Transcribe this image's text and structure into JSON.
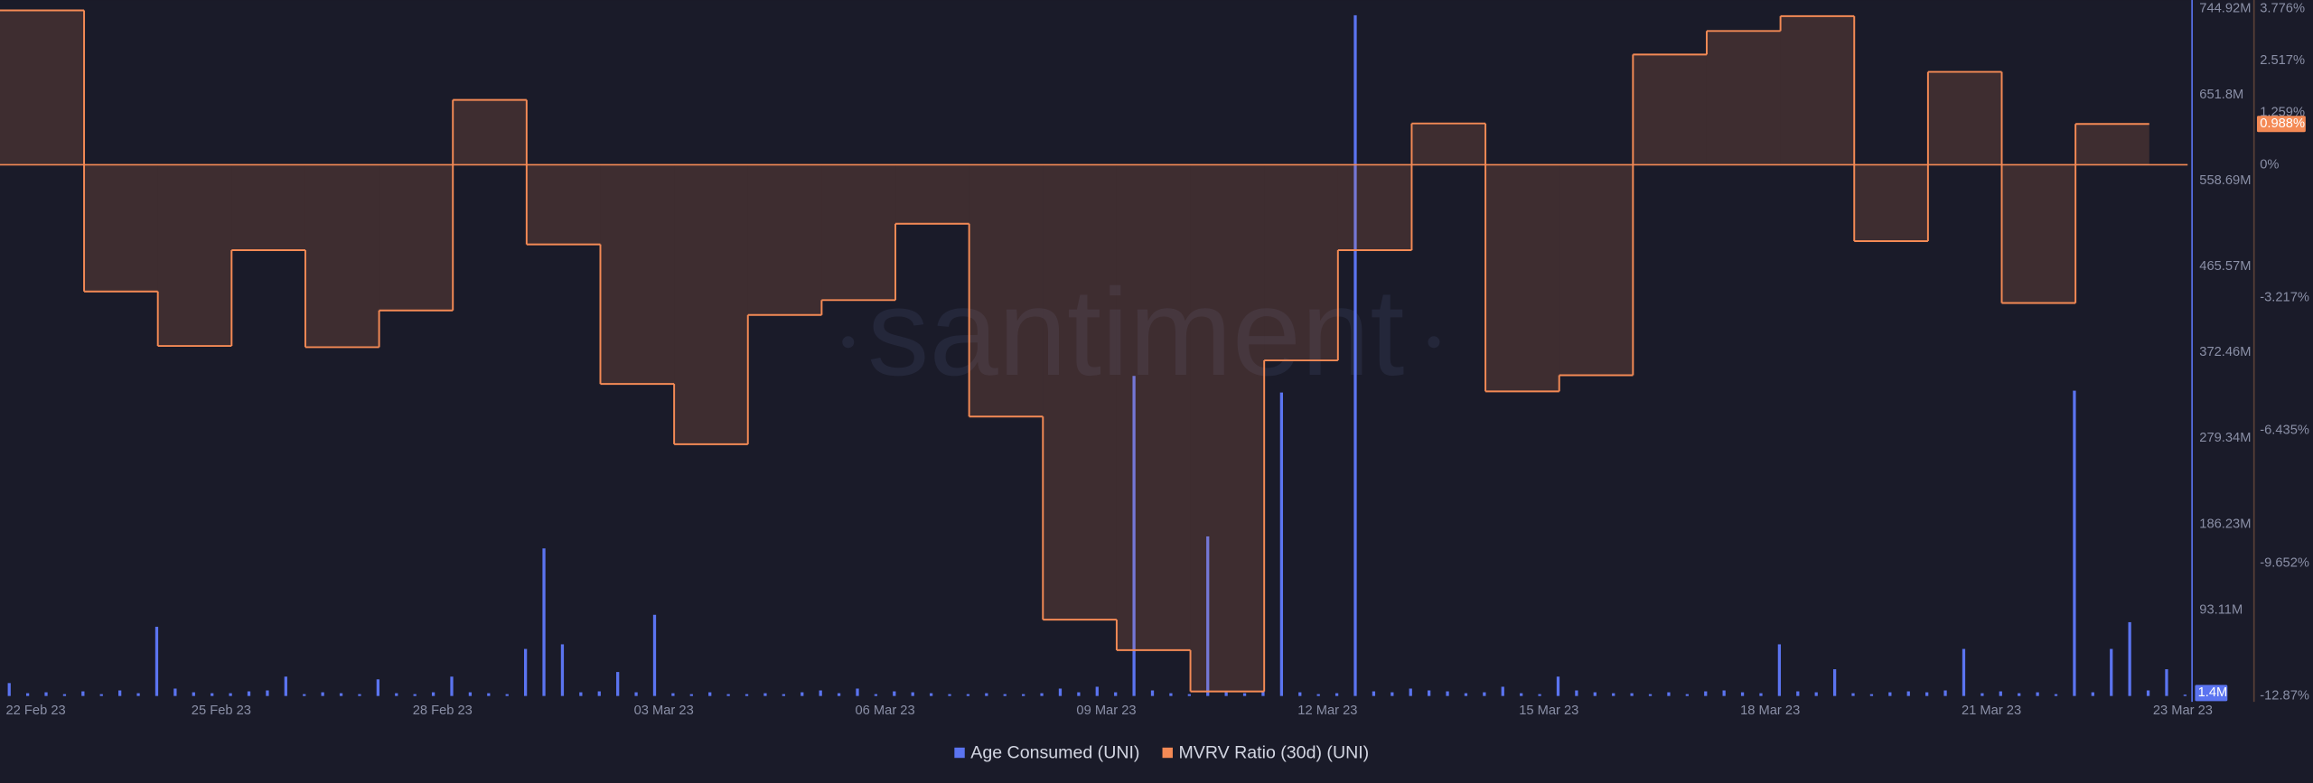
{
  "chart_data": {
    "type": "combo",
    "watermark": "santiment",
    "categories": [
      "22 Feb 23",
      null,
      null,
      "25 Feb 23",
      null,
      null,
      "28 Feb 23",
      null,
      null,
      "03 Mar 23",
      null,
      null,
      "06 Mar 23",
      null,
      null,
      "09 Mar 23",
      null,
      null,
      "12 Mar 23",
      null,
      null,
      "15 Mar 23",
      null,
      null,
      "18 Mar 23",
      null,
      null,
      "21 Mar 23",
      null,
      "23 Mar 23"
    ],
    "ylim": [
      0,
      744.92
    ],
    "yticks": [
      {
        "value": 744.92,
        "label": "744.92M"
      },
      {
        "value": 651.8,
        "label": "651.8M"
      },
      {
        "value": 558.69,
        "label": "558.69M"
      },
      {
        "value": 465.57,
        "label": "465.57M"
      },
      {
        "value": 372.46,
        "label": "372.46M"
      },
      {
        "value": 279.34,
        "label": "279.34M"
      },
      {
        "value": 186.23,
        "label": "186.23M"
      },
      {
        "value": 93.11,
        "label": "93.11M"
      }
    ],
    "y2lim": [
      -12.87,
      3.776
    ],
    "y2ticks": [
      {
        "value": 3.776,
        "label": "3.776%"
      },
      {
        "value": 2.517,
        "label": "2.517%"
      },
      {
        "value": 1.259,
        "label": "1.259%"
      },
      {
        "value": 0,
        "label": "0%"
      },
      {
        "value": -3.217,
        "label": "-3.217%"
      },
      {
        "value": -6.435,
        "label": "-6.435%"
      },
      {
        "value": -9.652,
        "label": "-9.652%"
      },
      {
        "value": -12.87,
        "label": "-12.87%"
      }
    ],
    "y2_zero_line": true,
    "series": [
      {
        "name": "Age Consumed (UNI)",
        "type": "bar",
        "color": "#5b74f0",
        "last_label": {
          "value": 1.4,
          "label": "1.4M"
        },
        "values": [
          [
            14,
            3,
            4,
            2
          ],
          [
            5,
            2,
            6,
            3
          ],
          [
            75,
            8,
            4,
            3
          ],
          [
            3,
            5,
            6,
            21
          ],
          [
            2,
            4,
            3,
            2
          ],
          [
            18,
            3,
            2,
            4
          ],
          [
            21,
            4,
            3,
            2
          ],
          [
            51,
            160,
            56,
            4
          ],
          [
            5,
            26,
            4,
            88
          ],
          [
            3,
            2,
            4,
            2
          ],
          [
            2,
            3,
            2,
            4
          ],
          [
            6,
            3,
            8,
            2
          ],
          [
            5,
            4,
            3,
            2
          ],
          [
            2,
            3,
            2,
            2
          ],
          [
            3,
            8,
            4,
            10
          ],
          [
            4,
            347,
            6,
            3
          ],
          [
            2,
            173,
            4,
            3
          ],
          [
            5,
            329,
            4,
            2
          ],
          [
            3,
            738,
            5,
            4
          ],
          [
            8,
            6,
            5,
            3
          ],
          [
            4,
            10,
            3,
            2
          ],
          [
            21,
            6,
            4,
            3
          ],
          [
            3,
            2,
            4,
            2
          ],
          [
            5,
            6,
            4,
            3
          ],
          [
            56,
            5,
            4,
            29
          ],
          [
            3,
            2,
            4,
            5
          ],
          [
            4,
            6,
            51,
            3
          ],
          [
            5,
            3,
            4,
            2
          ],
          [
            331,
            4,
            51,
            80
          ],
          [
            6,
            29,
            1.4,
            null
          ]
        ]
      },
      {
        "name": "MVRV Ratio (30d) (UNI)",
        "type": "line",
        "axis": "y2",
        "color": "#f48a55",
        "last_label": {
          "value": 0.988,
          "label": "0.988%"
        },
        "values": [
          3.74,
          -3.07,
          -4.39,
          -2.07,
          -4.42,
          -3.53,
          1.57,
          -1.93,
          -5.31,
          -6.77,
          -3.64,
          -3.28,
          -1.43,
          -6.1,
          -11.02,
          -11.76,
          -12.76,
          -4.74,
          -2.07,
          1.0,
          -5.49,
          -5.1,
          2.67,
          3.24,
          3.6,
          -1.85,
          2.25,
          -3.35,
          0.988,
          null
        ]
      }
    ]
  }
}
